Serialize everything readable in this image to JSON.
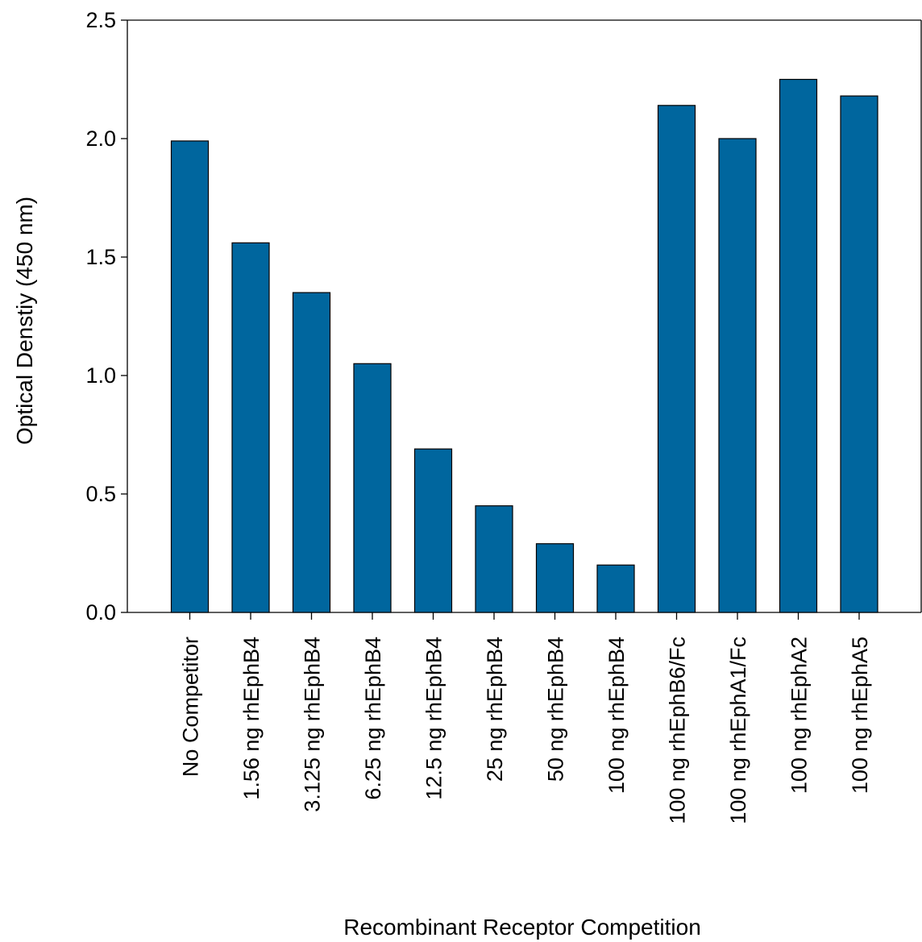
{
  "chart_data": {
    "type": "bar",
    "title": "",
    "xlabel": "Recombinant Receptor Competition",
    "ylabel": "Optical Denstiy (450 nm)",
    "ylim": [
      0,
      2.5
    ],
    "yticks": [
      "0.0",
      "0.5",
      "1.0",
      "1.5",
      "2.0",
      "2.5"
    ],
    "grid": false,
    "legend": "none",
    "bar_color": "#00669e",
    "categories": [
      "No Competitor",
      "1.56 ng rhEphB4",
      "3.125 ng rhEphB4",
      "6.25 ng rhEphB4",
      "12.5 ng rhEphB4",
      "25 ng rhEphB4",
      "50 ng rhEphB4",
      "100 ng rhEphB4",
      "100 ng rhEphB6/Fc",
      "100 ng rhEphA1/Fc",
      "100 ng rhEphA2",
      "100 ng rhEphA5"
    ],
    "values": [
      1.99,
      1.56,
      1.35,
      1.05,
      0.69,
      0.45,
      0.29,
      0.2,
      2.14,
      2.0,
      2.25,
      2.18
    ]
  }
}
